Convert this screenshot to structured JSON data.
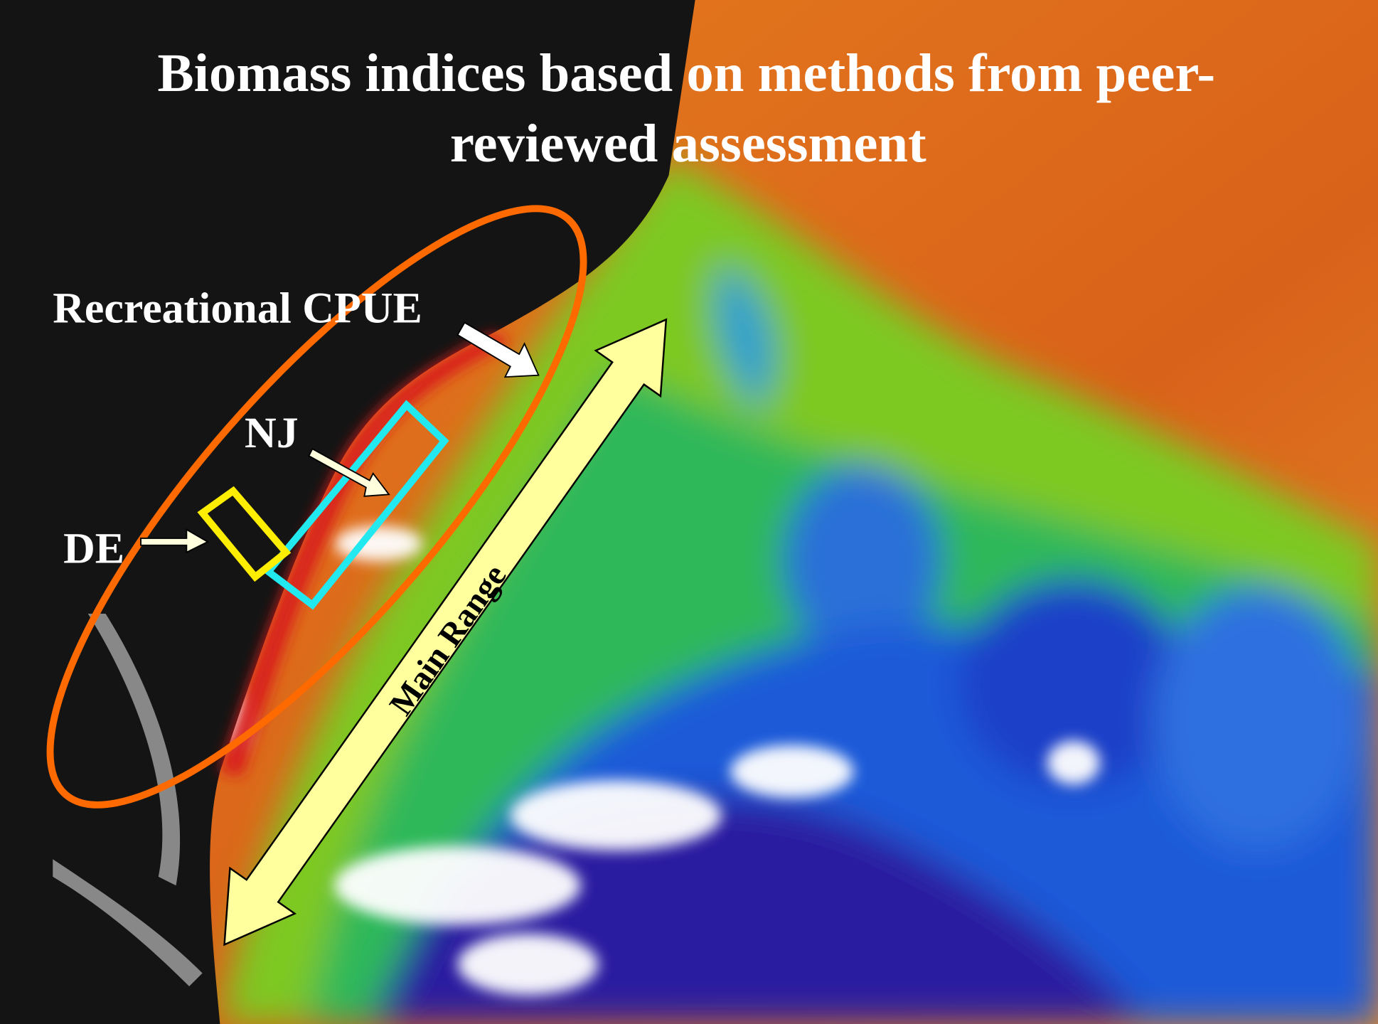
{
  "title": [
    "Biomass indices based on methods from peer-",
    "reviewed assessment"
  ],
  "labels": {
    "recreational": "Recreational CPUE",
    "nj": "NJ",
    "de": "DE",
    "main_range": "Main Range"
  }
}
